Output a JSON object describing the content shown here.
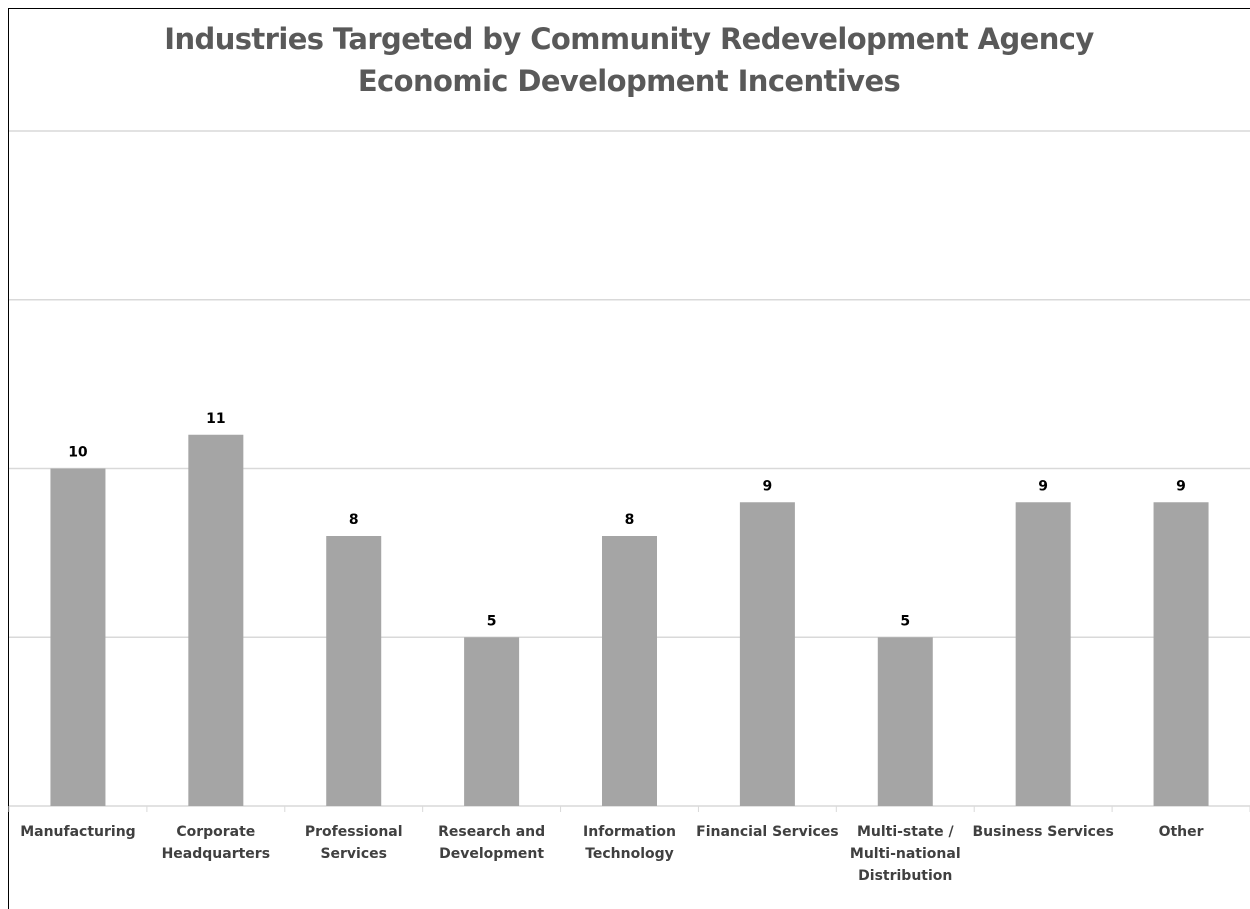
{
  "chart_data": {
    "type": "bar",
    "title_lines": [
      "Industries Targeted by Community Redevelopment Agency",
      "Economic Development Incentives"
    ],
    "categories": [
      [
        "Manufacturing"
      ],
      [
        "Corporate",
        "Headquarters"
      ],
      [
        "Professional",
        "Services"
      ],
      [
        "Research and",
        "Development"
      ],
      [
        "Information",
        "Technology"
      ],
      [
        "Financial Services"
      ],
      [
        "Multi-state /",
        "Multi-national",
        "Distribution"
      ],
      [
        "Business Services"
      ],
      [
        "Other"
      ]
    ],
    "values": [
      10,
      11,
      8,
      5,
      8,
      9,
      5,
      9,
      9
    ],
    "data_labels": [
      "10",
      "11",
      "8",
      "5",
      "8",
      "9",
      "5",
      "9",
      "9"
    ],
    "ylim": [
      0,
      20
    ],
    "y_gridlines": [
      5,
      10,
      15,
      20
    ],
    "y_tick_labels_shown": false,
    "grid": true,
    "legend": "none",
    "bar_color": "#a5a5a5",
    "title_color": "#595959"
  }
}
